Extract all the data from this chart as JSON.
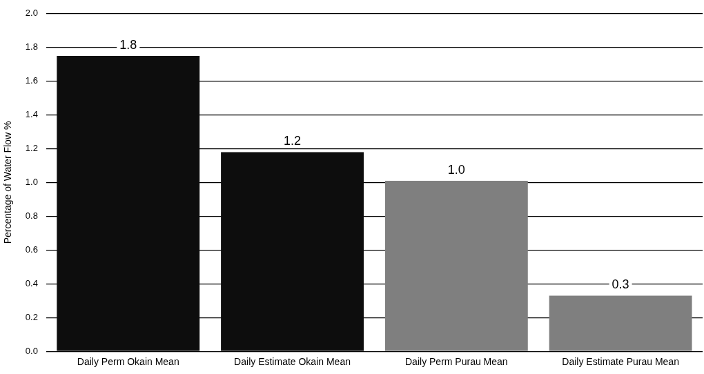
{
  "chart_data": {
    "type": "bar",
    "ylabel": "Percentage of Water Flow %",
    "categories": [
      "Daily Perm Okain Mean",
      "Daily Estimate Okain Mean",
      "Daily Perm Purau Mean",
      "Daily Estimate Purau Mean"
    ],
    "values": [
      1.75,
      1.18,
      1.01,
      0.33
    ],
    "colors": [
      "#0d0d0d",
      "#0d0d0d",
      "#7f7f7f",
      "#7f7f7f"
    ],
    "value_labels": [
      "1.8",
      "1.2",
      "1.0",
      "0.3"
    ],
    "ylim": [
      0,
      2
    ],
    "yticks": [
      {
        "value": 0,
        "label": "0.0"
      },
      {
        "value": 0.2,
        "label": "0.2"
      },
      {
        "value": 0.4,
        "label": "0.4"
      },
      {
        "value": 0.6,
        "label": "0.6"
      },
      {
        "value": 0.8,
        "label": "0.8"
      },
      {
        "value": 1,
        "label": "1.0"
      },
      {
        "value": 1.2,
        "label": "1.2"
      },
      {
        "value": 1.4,
        "label": "1.4"
      },
      {
        "value": 1.6,
        "label": "1.6"
      },
      {
        "value": 1.8,
        "label": "1.8"
      },
      {
        "value": 2,
        "label": "2.0"
      }
    ],
    "grid": "y"
  }
}
